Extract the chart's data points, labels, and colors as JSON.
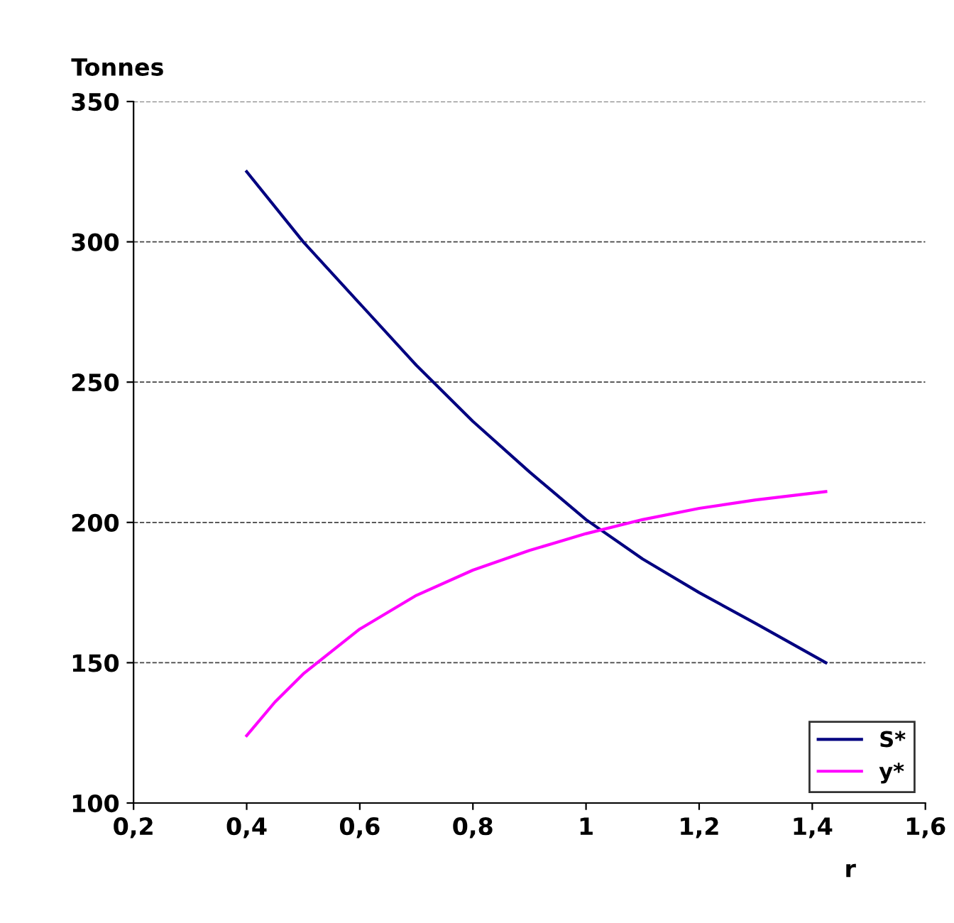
{
  "chart_data": {
    "type": "line",
    "ylabel": "Tonnes",
    "xlabel": "r",
    "xlim": [
      0.2,
      1.6
    ],
    "xticks": [
      {
        "value": 0.2,
        "label": "0,2"
      },
      {
        "value": 0.4,
        "label": "0,4"
      },
      {
        "value": 0.6,
        "label": "0,6"
      },
      {
        "value": 0.8,
        "label": "0,8"
      },
      {
        "value": 1,
        "label": "1"
      },
      {
        "value": 1.2,
        "label": "1,2"
      },
      {
        "value": 1.4,
        "label": "1,4"
      },
      {
        "value": 1.6,
        "label": "1,6"
      }
    ],
    "ylim": [
      100,
      350
    ],
    "yticks": [
      100,
      150,
      200,
      250,
      300,
      350
    ],
    "grid": "y",
    "legend": "bottom right",
    "marker": "none",
    "line_style": "solid",
    "series": [
      {
        "name": "S*",
        "color": "#000080",
        "x": [
          0.4,
          0.5,
          0.6,
          0.7,
          0.8,
          0.9,
          1.0,
          1.1,
          1.2,
          1.3,
          1.424
        ],
        "values": [
          325,
          300,
          278,
          256,
          236,
          218,
          201,
          187,
          175,
          164,
          150
        ]
      },
      {
        "name": "y*",
        "color": "#ff00ff",
        "x": [
          0.4,
          0.45,
          0.5,
          0.6,
          0.7,
          0.8,
          0.9,
          1.0,
          1.1,
          1.2,
          1.3,
          1.424
        ],
        "values": [
          124,
          136,
          146,
          162,
          174,
          183,
          190,
          196,
          201,
          205,
          208,
          211
        ]
      }
    ]
  }
}
